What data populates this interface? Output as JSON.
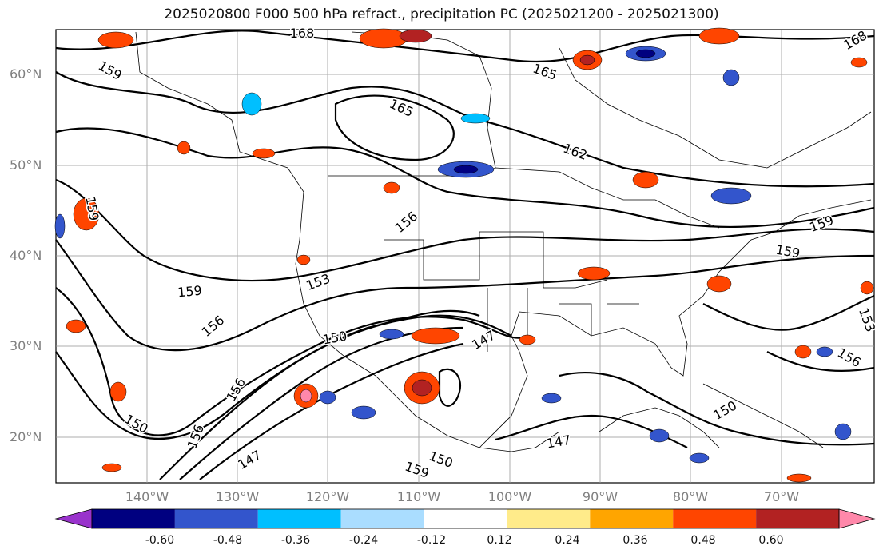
{
  "title": "2025020800 F000 500 hPa refract., precipitation PC (2025021200 - 2025021300)",
  "lat_labels": [
    "60°N",
    "50°N",
    "40°N",
    "30°N",
    "20°N"
  ],
  "lon_labels": [
    "140°W",
    "130°W",
    "120°W",
    "110°W",
    "100°W",
    "90°W",
    "80°W",
    "70°W"
  ],
  "contour_labels": [
    "168",
    "165",
    "165",
    "162",
    "159",
    "159",
    "156",
    "159",
    "159",
    "153",
    "150",
    "156",
    "147",
    "147",
    "150",
    "150",
    "159",
    "150",
    "156",
    "147",
    "153",
    "156",
    "159",
    "168",
    "156"
  ],
  "colorbar": {
    "ticks": [
      "-0.60",
      "-0.48",
      "-0.36",
      "-0.24",
      "-0.12",
      "0.12",
      "0.24",
      "0.36",
      "0.48",
      "0.60"
    ],
    "colors": [
      "#9933cc",
      "#000080",
      "#3355cc",
      "#00bfff",
      "#aaddff",
      "#ffffff",
      "#ffeb8a",
      "#ffa500",
      "#ff4500",
      "#b22222",
      "#ff88aa"
    ]
  }
}
